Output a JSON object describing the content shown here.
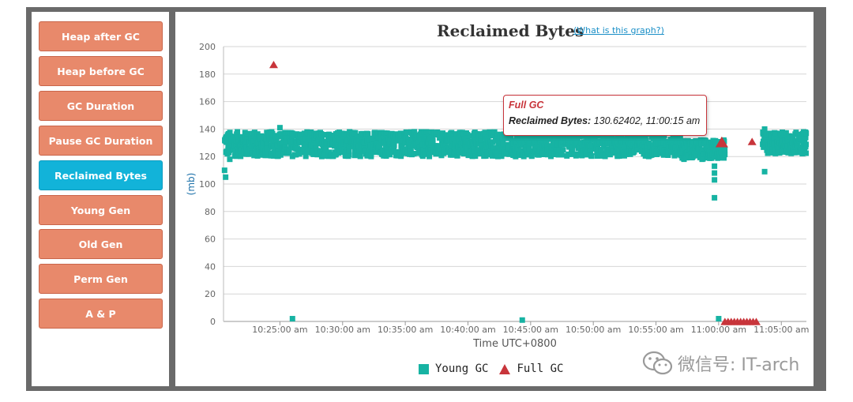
{
  "sidebar": {
    "items": [
      {
        "label": "Heap after GC",
        "active": false
      },
      {
        "label": "Heap before GC",
        "active": false
      },
      {
        "label": "GC Duration",
        "active": false
      },
      {
        "label": "Pause GC Duration",
        "active": false
      },
      {
        "label": "Reclaimed Bytes",
        "active": true
      },
      {
        "label": "Young Gen",
        "active": false
      },
      {
        "label": "Old Gen",
        "active": false
      },
      {
        "label": "Perm Gen",
        "active": false
      },
      {
        "label": "A & P",
        "active": false
      }
    ]
  },
  "header": {
    "title": "Reclaimed Bytes",
    "help_link": "(What is this graph?)"
  },
  "tooltip": {
    "title": "Full GC",
    "label": "Reclaimed Bytes:",
    "value": "130.62402, 11:00:15 am"
  },
  "legend": {
    "young": "Young GC",
    "full": "Full GC"
  },
  "watermark": {
    "text": "微信号: IT-arch"
  },
  "colors": {
    "young_gc": "#17b3a3",
    "full_gc": "#c8353b",
    "nav_button": "#e8896b",
    "nav_active": "#12b3d9"
  },
  "chart_data": {
    "type": "scatter",
    "title": "Reclaimed Bytes",
    "xlabel": "Time UTC+0800",
    "ylabel": "(mb)",
    "ylim": [
      0,
      200
    ],
    "yticks": [
      0,
      20,
      40,
      60,
      80,
      100,
      120,
      140,
      160,
      180,
      200
    ],
    "xlim": [
      "10:20:30 am",
      "11:07:00 am"
    ],
    "xtick_labels": [
      "10:25:00 am",
      "10:30:00 am",
      "10:35:00 am",
      "10:40:00 am",
      "10:45:00 am",
      "10:50:00 am",
      "10:55:00 am",
      "11:00:00 am",
      "11:05:00 am"
    ],
    "grid": true,
    "legend_position": "bottom-center",
    "young_gc": {
      "name": "Young GC",
      "marker": "square",
      "band_segments": [
        {
          "from": "10:20:35 am",
          "to": "10:57:00 am",
          "low": 120,
          "high": 138
        },
        {
          "from": "10:57:00 am",
          "to": "11:00:30 am",
          "low": 118,
          "high": 132
        },
        {
          "from": "11:03:30 am",
          "to": "11:07:00 am",
          "low": 122,
          "high": 138
        }
      ],
      "points": [
        {
          "x": "10:20:35 am",
          "y": 110
        },
        {
          "x": "10:20:40 am",
          "y": 105
        },
        {
          "x": "10:21:00 am",
          "y": 118
        },
        {
          "x": "10:25:00 am",
          "y": 141
        },
        {
          "x": "10:26:00 am",
          "y": 2
        },
        {
          "x": "10:44:20 am",
          "y": 1
        },
        {
          "x": "10:59:40 am",
          "y": 113
        },
        {
          "x": "10:59:40 am",
          "y": 108
        },
        {
          "x": "10:59:40 am",
          "y": 103
        },
        {
          "x": "10:59:40 am",
          "y": 90
        },
        {
          "x": "11:00:00 am",
          "y": 2
        },
        {
          "x": "11:03:40 am",
          "y": 109
        },
        {
          "x": "11:03:40 am",
          "y": 140
        }
      ]
    },
    "full_gc": {
      "name": "Full GC",
      "marker": "triangle",
      "points": [
        {
          "x": "10:24:30 am",
          "y": 187
        },
        {
          "x": "11:00:15 am",
          "y": 130.62402
        },
        {
          "x": "11:02:40 am",
          "y": 131
        },
        {
          "x": "11:00:30 am",
          "y": 0
        },
        {
          "x": "11:00:45 am",
          "y": 0
        },
        {
          "x": "11:01:00 am",
          "y": 0
        },
        {
          "x": "11:01:15 am",
          "y": 0
        },
        {
          "x": "11:01:30 am",
          "y": 0
        },
        {
          "x": "11:01:45 am",
          "y": 0
        },
        {
          "x": "11:02:00 am",
          "y": 0
        },
        {
          "x": "11:02:15 am",
          "y": 0
        },
        {
          "x": "11:02:30 am",
          "y": 0
        },
        {
          "x": "11:02:45 am",
          "y": 0
        },
        {
          "x": "11:03:00 am",
          "y": 0
        }
      ]
    }
  }
}
